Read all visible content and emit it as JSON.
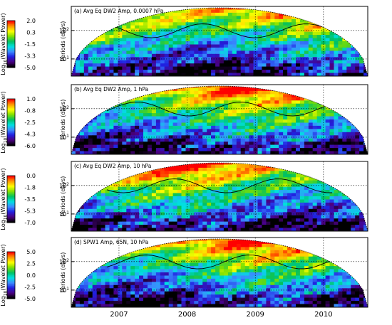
{
  "chart_data": [
    {
      "type": "heatmap",
      "title": "(a) Avg Eq DW2 Amp, 0.0007 hPa",
      "ylabel": "Periods (days)",
      "colorbar_label": "Log10(Wavelet Power)",
      "colorbar_ticks": [
        "2.0",
        "0.3",
        "-1.5",
        "-3.3",
        "-5.0"
      ],
      "colorbar_range": [
        -5.0,
        2.0
      ],
      "y_scale": "log",
      "y_ticks": [
        "10^2",
        "10^1"
      ],
      "seed": 3
    },
    {
      "type": "heatmap",
      "title": "(b) Avg Eq DW2 Amp, 1 hPa",
      "ylabel": "Periods (days)",
      "colorbar_label": "Log10(Wavelet Power)",
      "colorbar_ticks": [
        "1.0",
        "-0.8",
        "-2.5",
        "-4.3",
        "-6.0"
      ],
      "colorbar_range": [
        -6.0,
        1.0
      ],
      "y_scale": "log",
      "y_ticks": [
        "10^2",
        "10^1"
      ],
      "seed": 7
    },
    {
      "type": "heatmap",
      "title": "(c) Avg Eq DW2 Amp, 10 hPa",
      "ylabel": "Periods (days)",
      "colorbar_label": "Log10(Wavelet Power)",
      "colorbar_ticks": [
        "0.0",
        "-1.8",
        "-3.5",
        "-5.3",
        "-7.0"
      ],
      "colorbar_range": [
        -7.0,
        0.0
      ],
      "y_scale": "log",
      "y_ticks": [
        "10^2",
        "10^1"
      ],
      "seed": 11
    },
    {
      "type": "heatmap",
      "title": "(d) SPW1 Amp, 65N, 10 hPa",
      "ylabel": "Periods (days)",
      "colorbar_label": "Log10(Wavelet Power)",
      "colorbar_ticks": [
        "5.0",
        "2.5",
        "0.0",
        "-2.5",
        "-5.0"
      ],
      "colorbar_range": [
        -5.0,
        5.0
      ],
      "y_scale": "log",
      "y_ticks": [
        "10^2",
        "10^1"
      ],
      "seed": 19
    }
  ],
  "x_axis": {
    "tick_labels": [
      "2007",
      "2008",
      "2009",
      "2010"
    ],
    "range": [
      2006.3,
      2010.65
    ],
    "grid": "dotted at each year"
  },
  "colormap": [
    "#000000",
    "#4b0082",
    "#2020e0",
    "#3a8cff",
    "#00e0e0",
    "#00c060",
    "#80e000",
    "#ffff00",
    "#ff9900",
    "#ff0000"
  ]
}
